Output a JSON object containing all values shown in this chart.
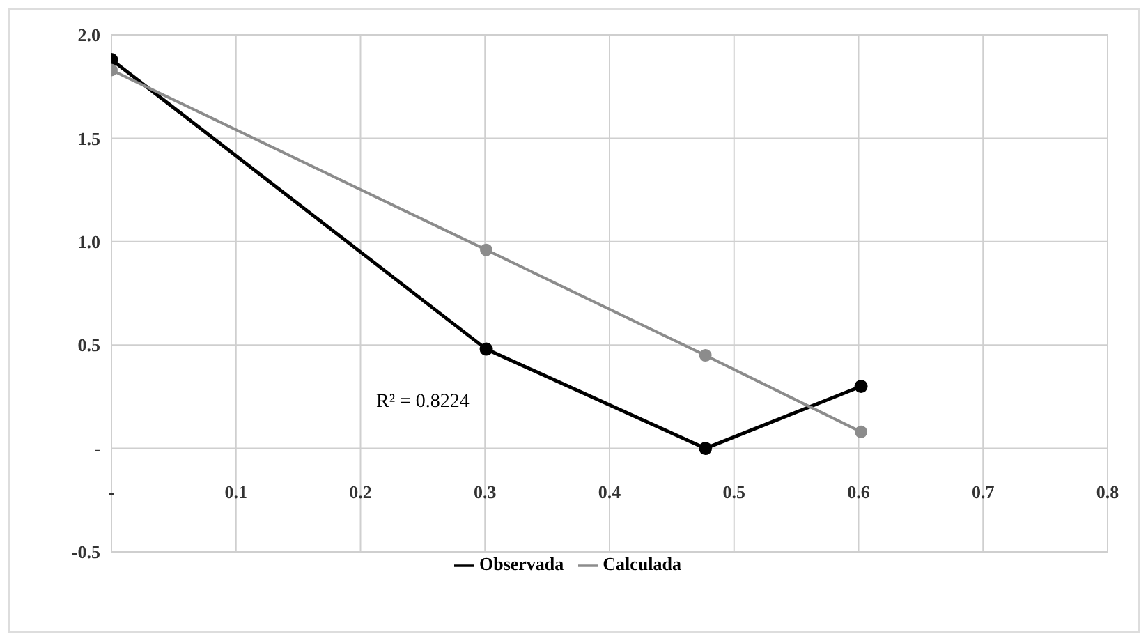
{
  "chart_data": {
    "type": "line",
    "x": [
      0,
      0.301,
      0.477,
      0.602
    ],
    "series": [
      {
        "name": "Observada",
        "color": "#000000",
        "values": [
          1.88,
          0.48,
          0.0,
          0.3
        ]
      },
      {
        "name": "Calculada",
        "color": "#8c8c8c",
        "values": [
          1.83,
          0.96,
          0.45,
          0.08
        ]
      }
    ],
    "xlim": [
      0,
      0.8
    ],
    "xticks": [
      {
        "value": 0,
        "label": "-"
      },
      0.1,
      0.2,
      0.3,
      0.4,
      0.5,
      0.6,
      0.7,
      0.8
    ],
    "ylim": [
      -0.5,
      2.0
    ],
    "yticks": [
      -0.5,
      {
        "value": 0,
        "label": "-"
      },
      0.5,
      {
        "value": 1,
        "label": "1.0"
      },
      1.5,
      {
        "value": 2,
        "label": "2.0"
      }
    ],
    "annotations": [
      "R² = 0.8224"
    ],
    "grid": true,
    "legend": "bottom",
    "marker": "circle",
    "line_style": "solid"
  }
}
